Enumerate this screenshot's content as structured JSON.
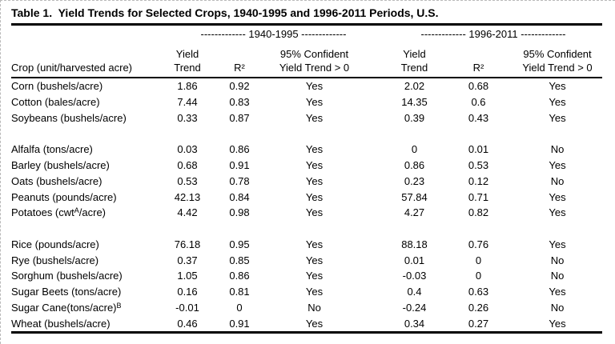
{
  "title": "Table 1.  Yield Trends for Selected Crops, 1940-1995 and 1996-2011 Periods, U.S.",
  "colors": {
    "text": "#000000",
    "background": "#ffffff",
    "rule": "#000000"
  },
  "table": {
    "period_headers": [
      "------------- 1940-1995 -------------",
      "------------- 1996-2011 -------------"
    ],
    "crop_header": "Crop (unit/harvested acre)",
    "columns": {
      "yield_trend": "Yield\nTrend",
      "r_squared": "R²",
      "confident": "95% Confident\nYield Trend > 0"
    },
    "rows": [
      {
        "crop": "Corn (bushels/acre)",
        "sup": "",
        "tail": "",
        "p1": [
          "1.86",
          "0.92",
          "Yes"
        ],
        "p2": [
          "2.02",
          "0.68",
          "Yes"
        ]
      },
      {
        "crop": "Cotton (bales/acre)",
        "sup": "",
        "tail": "",
        "p1": [
          "7.44",
          "0.83",
          "Yes"
        ],
        "p2": [
          "14.35",
          "0.6",
          "Yes"
        ]
      },
      {
        "crop": "Soybeans (bushels/acre)",
        "sup": "",
        "tail": "",
        "p1": [
          "0.33",
          "0.87",
          "Yes"
        ],
        "p2": [
          "0.39",
          "0.43",
          "Yes"
        ]
      },
      {
        "blank": true
      },
      {
        "crop": "Alfalfa (tons/acre)",
        "sup": "",
        "tail": "",
        "p1": [
          "0.03",
          "0.86",
          "Yes"
        ],
        "p2": [
          "0",
          "0.01",
          "No"
        ]
      },
      {
        "crop": "Barley (bushels/acre)",
        "sup": "",
        "tail": "",
        "p1": [
          "0.68",
          "0.91",
          "Yes"
        ],
        "p2": [
          "0.86",
          "0.53",
          "Yes"
        ]
      },
      {
        "crop": "Oats (bushels/acre)",
        "sup": "",
        "tail": "",
        "p1": [
          "0.53",
          "0.78",
          "Yes"
        ],
        "p2": [
          "0.23",
          "0.12",
          "No"
        ]
      },
      {
        "crop": "Peanuts (pounds/acre)",
        "sup": "",
        "tail": "",
        "p1": [
          "42.13",
          "0.84",
          "Yes"
        ],
        "p2": [
          "57.84",
          "0.71",
          "Yes"
        ]
      },
      {
        "crop": "Potatoes (cwt",
        "sup": "A",
        "tail": "/acre)",
        "p1": [
          "4.42",
          "0.98",
          "Yes"
        ],
        "p2": [
          "4.27",
          "0.82",
          "Yes"
        ]
      },
      {
        "blank": true
      },
      {
        "crop": "Rice (pounds/acre)",
        "sup": "",
        "tail": "",
        "p1": [
          "76.18",
          "0.95",
          "Yes"
        ],
        "p2": [
          "88.18",
          "0.76",
          "Yes"
        ]
      },
      {
        "crop": "Rye (bushels/acre)",
        "sup": "",
        "tail": "",
        "p1": [
          "0.37",
          "0.85",
          "Yes"
        ],
        "p2": [
          "0.01",
          "0",
          "No"
        ]
      },
      {
        "crop": "Sorghum (bushels/acre)",
        "sup": "",
        "tail": "",
        "p1": [
          "1.05",
          "0.86",
          "Yes"
        ],
        "p2": [
          "-0.03",
          "0",
          "No"
        ]
      },
      {
        "crop": "Sugar Beets (tons/acre)",
        "sup": "",
        "tail": "",
        "p1": [
          "0.16",
          "0.81",
          "Yes"
        ],
        "p2": [
          "0.4",
          "0.63",
          "Yes"
        ]
      },
      {
        "crop": "Sugar Cane(tons/acre)",
        "sup": "B",
        "tail": "",
        "p1": [
          "-0.01",
          "0",
          "No"
        ],
        "p2": [
          "-0.24",
          "0.26",
          "No"
        ]
      },
      {
        "crop": "Wheat (bushels/acre)",
        "sup": "",
        "tail": "",
        "p1": [
          "0.46",
          "0.91",
          "Yes"
        ],
        "p2": [
          "0.34",
          "0.27",
          "Yes"
        ]
      }
    ]
  }
}
